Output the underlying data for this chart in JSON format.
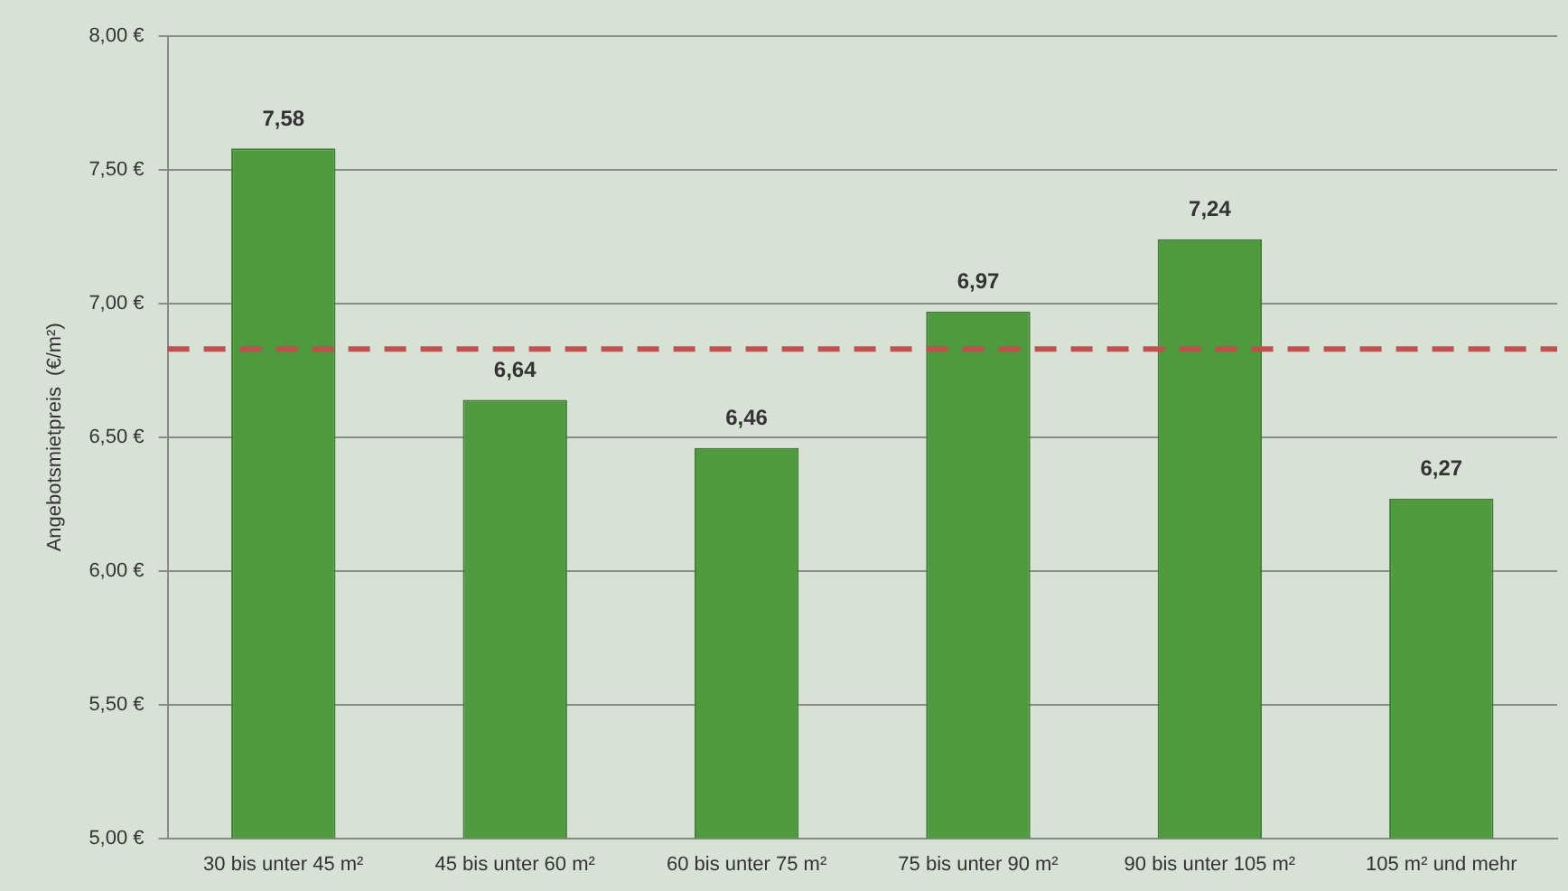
{
  "chart_data": {
    "type": "bar",
    "ylabel": "Angebotsmietpreis  (€/m²)",
    "categories": [
      "30 bis unter 45 m²",
      "45 bis unter 60 m²",
      "60 bis unter 75 m²",
      "75 bis unter 90 m²",
      "90 bis unter 105 m²",
      "105 m² und mehr"
    ],
    "values": [
      7.58,
      6.64,
      6.46,
      6.97,
      7.24,
      6.27
    ],
    "color": "#4f9a3f",
    "ylim": [
      5,
      8
    ],
    "yticks": [
      {
        "value": 5,
        "label": "5,00 €"
      },
      {
        "value": 5.5,
        "label": "5,50 €"
      },
      {
        "value": 6,
        "label": "6,00 €"
      },
      {
        "value": 6.5,
        "label": "6,50 €"
      },
      {
        "value": 7,
        "label": "7,00 €"
      },
      {
        "value": 7.5,
        "label": "7,50 €"
      },
      {
        "value": 8,
        "label": "8,00 €"
      }
    ],
    "value_labels": [
      "7,58",
      "6,64",
      "6,46",
      "6,97",
      "7,24",
      "6,27"
    ],
    "ref_lines": [
      {
        "axis": "y",
        "value": 6.83,
        "color": "#c0504d",
        "line_style": "dashed"
      }
    ],
    "grid": "y",
    "legend": false
  }
}
